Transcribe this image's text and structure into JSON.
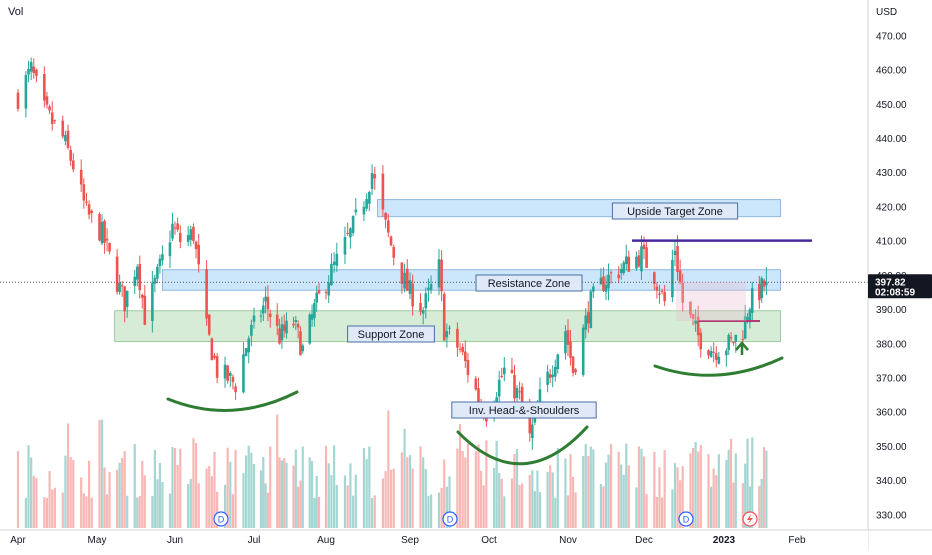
{
  "volume_label": "Vol",
  "currency_label": "USD",
  "last_price_badge": {
    "price": "397.82",
    "countdown": "02:08:59"
  },
  "chart_data": {
    "type": "candlestick",
    "y_axis": {
      "ticks": [
        330,
        340,
        350,
        360,
        370,
        380,
        390,
        400,
        410,
        420,
        430,
        440,
        450,
        460,
        470
      ],
      "tick_labels": [
        "330.00",
        "340.00",
        "350.00",
        "360.00",
        "370.00",
        "380.00",
        "390.00",
        "400.00",
        "410.00",
        "420.00",
        "430.00",
        "440.00",
        "450.00",
        "460.00",
        "470.00"
      ],
      "ylim": [
        326,
        478
      ]
    },
    "x_axis": {
      "labels": [
        "Apr",
        "May",
        "Jun",
        "Jul",
        "Aug",
        "Sep",
        "Oct",
        "Nov",
        "Dec",
        "2023",
        "Feb"
      ],
      "months": [
        "2022-04",
        "2022-05",
        "2022-06",
        "2022-07",
        "2022-08",
        "2022-09",
        "2022-10",
        "2022-11",
        "2022-12",
        "2023-01",
        "2023-02"
      ]
    },
    "close_path": [
      [
        "2022-04-01",
        452
      ],
      [
        "2022-04-06",
        460
      ],
      [
        "2022-04-11",
        448
      ],
      [
        "2022-04-18",
        440
      ],
      [
        "2022-04-22",
        432
      ],
      [
        "2022-04-27",
        418
      ],
      [
        "2022-05-03",
        412
      ],
      [
        "2022-05-09",
        398
      ],
      [
        "2022-05-12",
        392
      ],
      [
        "2022-05-17",
        404
      ],
      [
        "2022-05-20",
        388
      ],
      [
        "2022-05-26",
        402
      ],
      [
        "2022-05-31",
        414
      ],
      [
        "2022-06-03",
        410
      ],
      [
        "2022-06-08",
        412
      ],
      [
        "2022-06-13",
        384
      ],
      [
        "2022-06-17",
        372
      ],
      [
        "2022-06-24",
        368
      ],
      [
        "2022-06-29",
        382
      ],
      [
        "2022-07-06",
        392
      ],
      [
        "2022-07-12",
        382
      ],
      [
        "2022-07-18",
        386
      ],
      [
        "2022-07-22",
        378
      ],
      [
        "2022-07-27",
        390
      ],
      [
        "2022-08-01",
        398
      ],
      [
        "2022-08-05",
        404
      ],
      [
        "2022-08-10",
        412
      ],
      [
        "2022-08-15",
        422
      ],
      [
        "2022-08-18",
        430
      ],
      [
        "2022-08-23",
        414
      ],
      [
        "2022-08-26",
        406
      ],
      [
        "2022-08-31",
        396
      ],
      [
        "2022-09-06",
        390
      ],
      [
        "2022-09-12",
        402
      ],
      [
        "2022-09-14",
        384
      ],
      [
        "2022-09-20",
        378
      ],
      [
        "2022-09-27",
        364
      ],
      [
        "2022-09-30",
        360
      ],
      [
        "2022-10-07",
        372
      ],
      [
        "2022-10-13",
        364
      ],
      [
        "2022-10-17",
        352
      ],
      [
        "2022-10-21",
        364
      ],
      [
        "2022-10-26",
        374
      ],
      [
        "2022-10-31",
        384
      ],
      [
        "2022-11-03",
        372
      ],
      [
        "2022-11-10",
        392
      ],
      [
        "2022-11-15",
        398
      ],
      [
        "2022-11-22",
        402
      ],
      [
        "2022-11-30",
        406
      ],
      [
        "2022-12-05",
        400
      ],
      [
        "2022-12-09",
        392
      ],
      [
        "2022-12-13",
        408
      ],
      [
        "2022-12-16",
        392
      ],
      [
        "2022-12-22",
        382
      ],
      [
        "2022-12-28",
        378
      ],
      [
        "2023-01-04",
        380
      ],
      [
        "2023-01-09",
        384
      ],
      [
        "2023-01-12",
        392
      ],
      [
        "2023-01-17",
        396
      ],
      [
        "2023-01-19",
        397.82
      ]
    ],
    "zones": [
      {
        "label": "Upside Target Zone",
        "start": "2022-08-20",
        "end": "2023-01-25",
        "low": 417,
        "high": 422,
        "color": "#bbdefb"
      },
      {
        "label": "Resistance Zone",
        "start": "2022-05-27",
        "end": "2023-01-25",
        "low": 395.5,
        "high": 401.5,
        "color": "#bbdefb"
      },
      {
        "label": "Support Zone",
        "start": "2022-05-08",
        "end": "2023-01-25",
        "low": 380.5,
        "high": 389.5,
        "color": "#c8e6c9"
      }
    ],
    "annotations": [
      {
        "label": "Inv. Head-&-Shoulders"
      }
    ],
    "target_line": {
      "price": 410,
      "start": "2022-12-01",
      "end": "2023-02-01",
      "color": "#4a2a9a"
    },
    "neckline": {
      "price": 386.5,
      "start": "2022-12-22",
      "end": "2023-01-20",
      "color": "#b03a72"
    },
    "dividend_markers": [
      "D",
      "D",
      "D"
    ],
    "colors": {
      "up": "#26a69a",
      "down": "#ef5350",
      "volume_up": "#a5d6d2",
      "volume_down": "#f7b7b5",
      "curve": "#2e7d32",
      "zone_border": "#4a90d9"
    }
  }
}
